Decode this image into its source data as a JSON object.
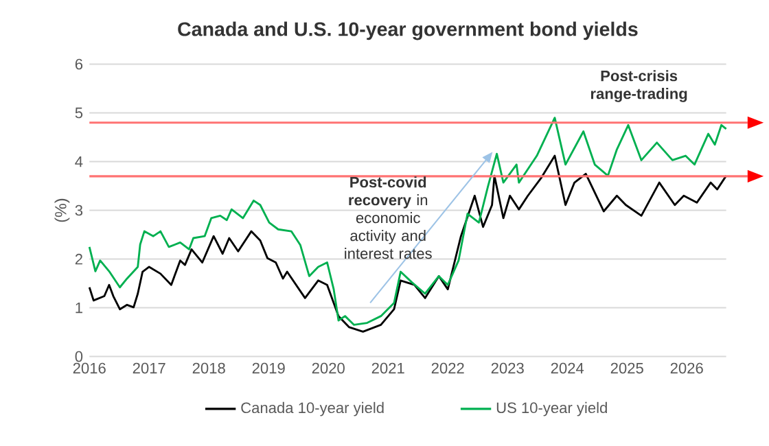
{
  "chart_data": {
    "type": "line",
    "title": "Canada and U.S. 10-year government bond yields",
    "ylabel": "(%)",
    "xlim": [
      2016,
      2026.66
    ],
    "xticks": [
      2016,
      2017,
      2018,
      2019,
      2020,
      2021,
      2022,
      2023,
      2024,
      2025,
      2026
    ],
    "ylim": [
      0,
      6
    ],
    "yticks": [
      0,
      1,
      2,
      3,
      4,
      5,
      6
    ],
    "grid": "y",
    "legend": "bottom",
    "annotations": [
      "**Post-covid recovery** in economic activity and interest rates",
      "Post-crisis range-trading"
    ],
    "ref_lines": [
      {
        "axis": "y",
        "value": 4.8,
        "color": "#ff7373"
      },
      {
        "axis": "y",
        "value": 3.7,
        "color": "#ff7373"
      }
    ],
    "series": [
      {
        "name": "Canada 10-year yield",
        "color": "#000000",
        "x": [
          2016.0,
          2016.07,
          2016.25,
          2016.33,
          2016.4,
          2016.51,
          2016.63,
          2016.74,
          2016.81,
          2016.89,
          2017.0,
          2017.19,
          2017.37,
          2017.52,
          2017.6,
          2017.71,
          2017.89,
          2018.08,
          2018.23,
          2018.34,
          2018.49,
          2018.71,
          2018.86,
          2018.98,
          2019.12,
          2019.24,
          2019.31,
          2019.61,
          2019.83,
          2019.98,
          2020.17,
          2020.35,
          2020.58,
          2020.88,
          2021.1,
          2021.21,
          2021.44,
          2021.62,
          2021.85,
          2022.0,
          2022.22,
          2022.45,
          2022.59,
          2022.74,
          2022.78,
          2022.93,
          2023.04,
          2023.19,
          2023.34,
          2023.56,
          2023.79,
          2023.97,
          2024.12,
          2024.31,
          2024.61,
          2024.83,
          2024.98,
          2025.24,
          2025.54,
          2025.8,
          2025.95,
          2026.17,
          2026.4,
          2026.51,
          2026.66
        ],
        "values": [
          1.42,
          1.15,
          1.24,
          1.47,
          1.24,
          0.97,
          1.06,
          1.01,
          1.29,
          1.74,
          1.84,
          1.7,
          1.47,
          1.97,
          1.88,
          2.2,
          1.93,
          2.47,
          2.11,
          2.43,
          2.16,
          2.57,
          2.38,
          2.02,
          1.93,
          1.6,
          1.74,
          1.2,
          1.56,
          1.47,
          0.83,
          0.6,
          0.51,
          0.65,
          0.97,
          1.56,
          1.47,
          1.2,
          1.65,
          1.38,
          2.47,
          3.3,
          2.66,
          3.11,
          3.71,
          2.84,
          3.3,
          3.02,
          3.3,
          3.66,
          4.12,
          3.11,
          3.57,
          3.75,
          2.98,
          3.3,
          3.11,
          2.89,
          3.57,
          3.11,
          3.3,
          3.16,
          3.57,
          3.43,
          3.71
        ]
      },
      {
        "name": "US 10-year yield",
        "color": "#00b050",
        "x": [
          2016.0,
          2016.1,
          2016.18,
          2016.33,
          2016.51,
          2016.63,
          2016.81,
          2016.85,
          2016.92,
          2017.07,
          2017.19,
          2017.33,
          2017.52,
          2017.67,
          2017.74,
          2017.93,
          2018.04,
          2018.19,
          2018.3,
          2018.38,
          2018.57,
          2018.75,
          2018.86,
          2019.01,
          2019.16,
          2019.38,
          2019.53,
          2019.68,
          2019.83,
          2019.98,
          2020.09,
          2020.17,
          2020.28,
          2020.43,
          2020.65,
          2020.88,
          2021.1,
          2021.21,
          2021.4,
          2021.62,
          2021.85,
          2022.0,
          2022.18,
          2022.33,
          2022.52,
          2022.67,
          2022.82,
          2022.93,
          2023.15,
          2023.19,
          2023.49,
          2023.79,
          2023.97,
          2024.27,
          2024.46,
          2024.68,
          2024.83,
          2025.02,
          2025.24,
          2025.5,
          2025.76,
          2025.98,
          2026.13,
          2026.36,
          2026.47,
          2026.58,
          2026.66
        ],
        "values": [
          2.25,
          1.75,
          1.97,
          1.75,
          1.42,
          1.6,
          1.84,
          2.3,
          2.57,
          2.47,
          2.57,
          2.25,
          2.34,
          2.2,
          2.43,
          2.47,
          2.84,
          2.89,
          2.8,
          3.02,
          2.84,
          3.2,
          3.11,
          2.75,
          2.61,
          2.57,
          2.29,
          1.65,
          1.84,
          1.93,
          1.38,
          0.74,
          0.83,
          0.65,
          0.69,
          0.83,
          1.1,
          1.74,
          1.52,
          1.29,
          1.65,
          1.47,
          1.97,
          2.93,
          2.75,
          3.48,
          4.16,
          3.57,
          3.94,
          3.57,
          4.12,
          4.9,
          3.94,
          4.62,
          3.94,
          3.71,
          4.25,
          4.75,
          4.03,
          4.39,
          4.03,
          4.12,
          3.94,
          4.57,
          4.35,
          4.75,
          4.67
        ]
      }
    ]
  }
}
